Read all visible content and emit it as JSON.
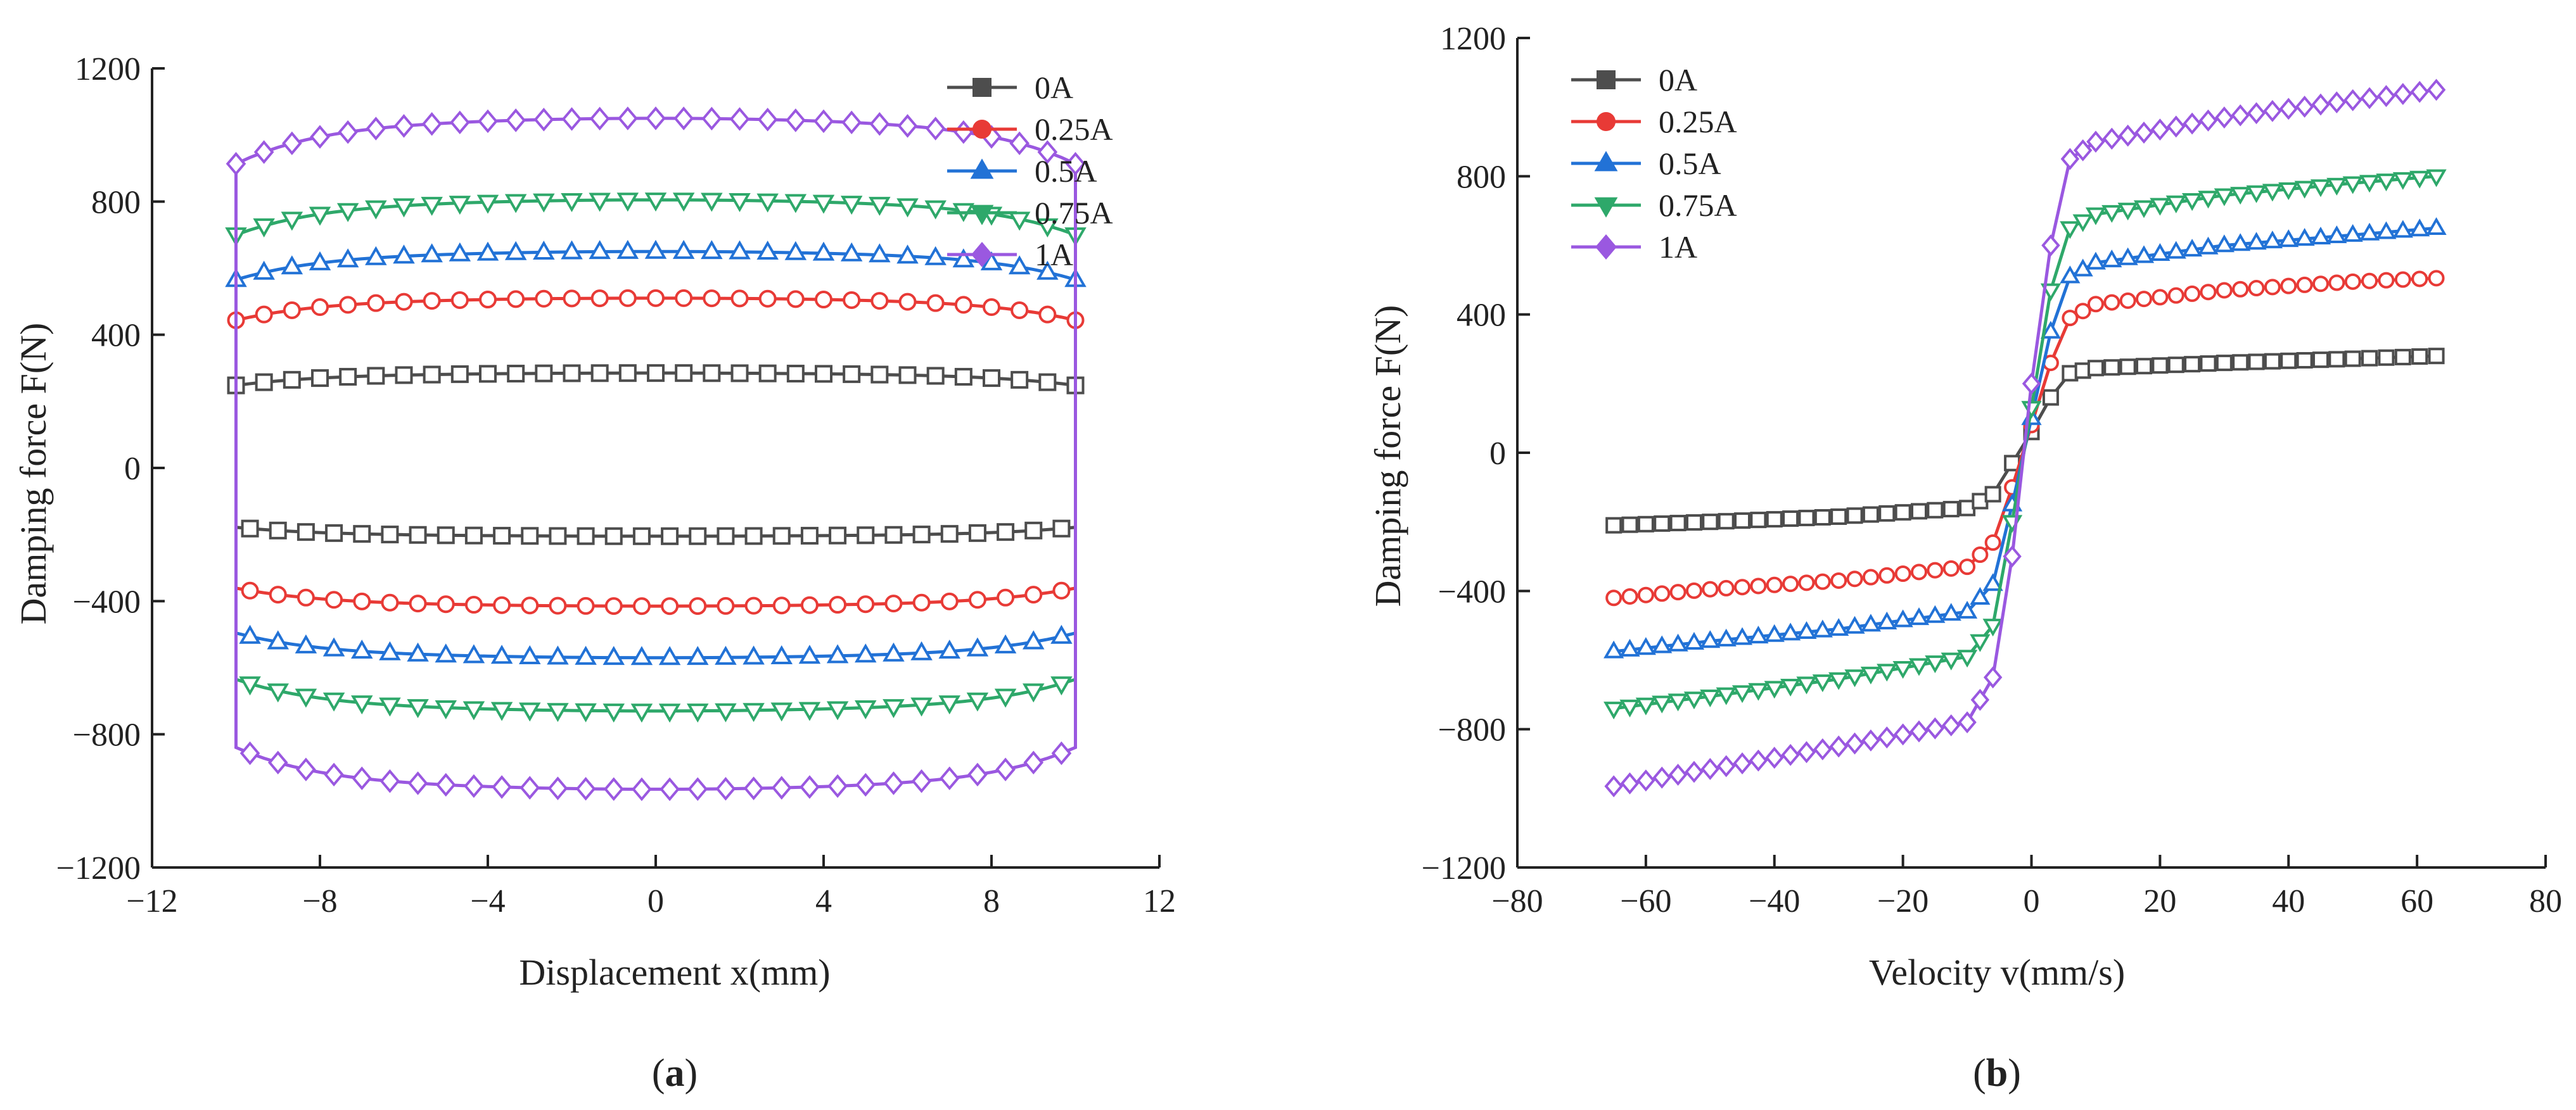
{
  "chart_data": [
    {
      "type": "line",
      "panel_label": "a",
      "title": "",
      "xlabel": "Displacement x(mm)",
      "ylabel": "Damping force F(N)",
      "xlim": [
        -12,
        12
      ],
      "ylim": [
        -1200,
        1200
      ],
      "xticks": [
        -12,
        -8,
        -4,
        0,
        4,
        8,
        12
      ],
      "yticks": [
        -1200,
        -800,
        -400,
        0,
        400,
        800,
        1200
      ],
      "xtick_labels": [
        "−12",
        "−8",
        "−4",
        "0",
        "4",
        "8",
        "12"
      ],
      "ytick_labels": [
        "−1200",
        "−800",
        "−400",
        "0",
        "400",
        "800",
        "1200"
      ],
      "grid": false,
      "legend_position": "top-right",
      "series": [
        {
          "name": "0A",
          "color": "#4d4d4d",
          "marker": "square",
          "upper": 285,
          "lower": -205,
          "x_range": [
            -10,
            10
          ]
        },
        {
          "name": "0.25A",
          "color": "#e83a36",
          "marker": "circle",
          "upper": 510,
          "lower": -415,
          "x_range": [
            -10,
            10
          ]
        },
        {
          "name": "0.5A",
          "color": "#2272d6",
          "marker": "triangle-up",
          "upper": 650,
          "lower": -570,
          "x_range": [
            -10,
            10
          ]
        },
        {
          "name": "0.75A",
          "color": "#2ea86a",
          "marker": "triangle-down",
          "upper": 805,
          "lower": -730,
          "x_range": [
            -10,
            10
          ]
        },
        {
          "name": "1A",
          "color": "#9a58e0",
          "marker": "diamond",
          "upper": 1050,
          "lower": -965,
          "x_range": [
            -10,
            10
          ]
        }
      ]
    },
    {
      "type": "line",
      "panel_label": "b",
      "title": "",
      "xlabel": "Velocity v(mm/s)",
      "ylabel": "Damping force F(N)",
      "xlim": [
        -80,
        80
      ],
      "ylim": [
        -1200,
        1200
      ],
      "xticks": [
        -80,
        -60,
        -40,
        -20,
        0,
        20,
        40,
        60,
        80
      ],
      "yticks": [
        -1200,
        -800,
        -400,
        0,
        400,
        800,
        1200
      ],
      "xtick_labels": [
        "−80",
        "−60",
        "−40",
        "−20",
        "0",
        "20",
        "40",
        "60",
        "80"
      ],
      "ytick_labels": [
        "−1200",
        "−800",
        "−400",
        "0",
        "400",
        "800",
        "1200"
      ],
      "grid": false,
      "legend_position": "top-left",
      "series": [
        {
          "name": "0A",
          "color": "#4d4d4d",
          "marker": "square",
          "x": [
            -65,
            -50,
            -30,
            -10,
            -6,
            -3,
            0,
            3,
            6,
            10,
            30,
            50,
            63
          ],
          "y": [
            -210,
            -200,
            -185,
            -160,
            -120,
            -30,
            60,
            160,
            230,
            245,
            260,
            272,
            280
          ]
        },
        {
          "name": "0.25A",
          "color": "#e83a36",
          "marker": "circle",
          "x": [
            -65,
            -50,
            -30,
            -10,
            -6,
            -3,
            0,
            3,
            6,
            10,
            30,
            50,
            63
          ],
          "y": [
            -420,
            -395,
            -370,
            -330,
            -260,
            -100,
            80,
            260,
            390,
            430,
            470,
            495,
            505
          ]
        },
        {
          "name": "0.5A",
          "color": "#2272d6",
          "marker": "triangle-up",
          "x": [
            -65,
            -50,
            -30,
            -10,
            -6,
            -3,
            0,
            3,
            6,
            10,
            30,
            50,
            63
          ],
          "y": [
            -575,
            -545,
            -510,
            -460,
            -380,
            -150,
            100,
            350,
            510,
            550,
            600,
            630,
            650
          ]
        },
        {
          "name": "0.75A",
          "color": "#2ea86a",
          "marker": "triangle-down",
          "x": [
            -65,
            -50,
            -30,
            -10,
            -6,
            -3,
            0,
            3,
            6,
            10,
            30,
            50,
            63
          ],
          "y": [
            -740,
            -705,
            -655,
            -590,
            -500,
            -200,
            130,
            470,
            650,
            690,
            745,
            780,
            800
          ]
        },
        {
          "name": "1A",
          "color": "#9a58e0",
          "marker": "diamond",
          "x": [
            -65,
            -50,
            -30,
            -10,
            -6,
            -3,
            0,
            3,
            6,
            10,
            30,
            50,
            63
          ],
          "y": [
            -965,
            -915,
            -850,
            -780,
            -650,
            -300,
            200,
            600,
            850,
            900,
            970,
            1020,
            1050
          ]
        }
      ]
    }
  ]
}
